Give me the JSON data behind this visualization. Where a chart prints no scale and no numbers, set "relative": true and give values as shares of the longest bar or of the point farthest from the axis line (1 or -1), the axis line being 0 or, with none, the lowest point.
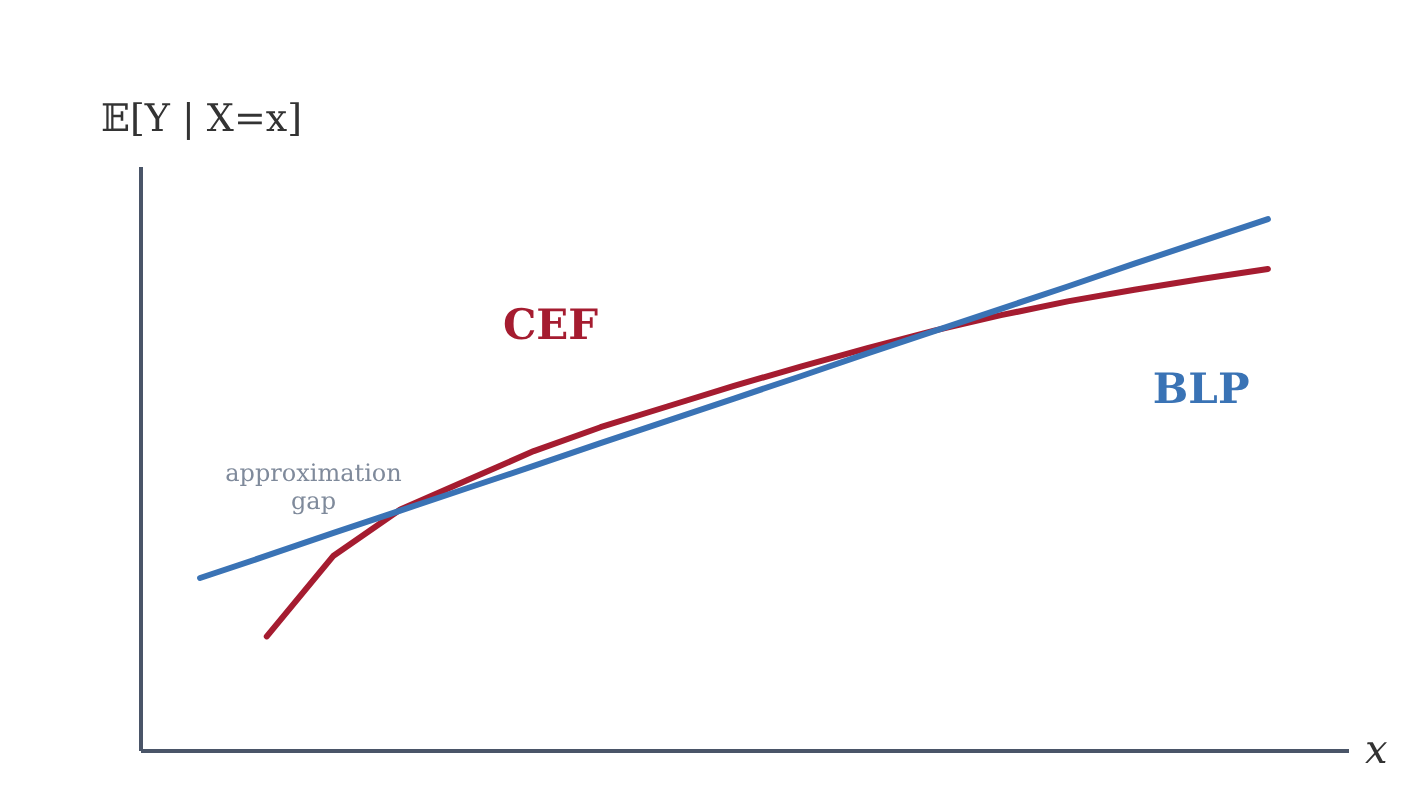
{
  "chart_data": {
    "type": "line",
    "relative": true,
    "xlabel": "x",
    "ylabel": "𝔼[Y | X=x]",
    "grid": false,
    "marker": "none",
    "line_style": "solid",
    "categories": [
      null,
      null,
      null,
      null,
      null,
      null,
      null,
      null,
      null,
      null,
      null,
      null,
      null,
      null,
      null,
      null,
      null
    ],
    "series": [
      {
        "name": "CEF",
        "color": "#a51c30",
        "values": [
          null,
          0.214,
          0.366,
          0.453,
          0.508,
          0.563,
          0.608,
          0.647,
          0.686,
          0.722,
          0.757,
          0.79,
          0.819,
          0.845,
          0.867,
          0.887,
          0.906
        ]
      },
      {
        "name": "BLP",
        "color": "#3a73b5",
        "values": [
          0.324,
          0.366,
          0.409,
          0.451,
          0.493,
          0.535,
          0.578,
          0.62,
          0.662,
          0.704,
          0.747,
          0.789,
          0.831,
          0.873,
          0.916,
          0.958,
          1.0
        ]
      }
    ],
    "annotations": [
      "approximation gap"
    ]
  }
}
